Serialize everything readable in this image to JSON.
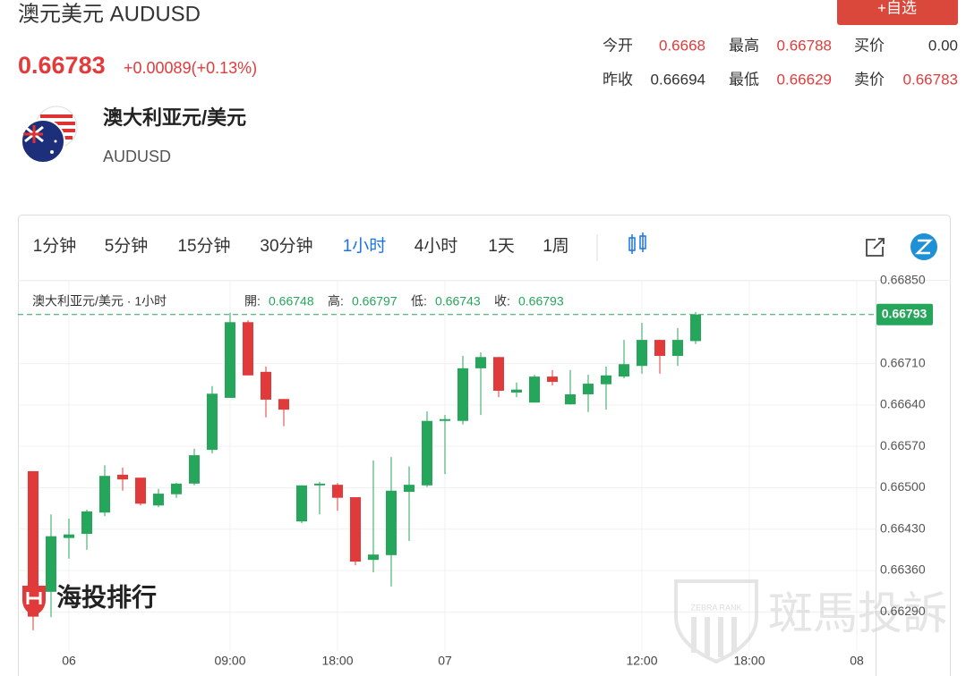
{
  "header": {
    "title": "澳元美元 AUDUSD",
    "price": "0.66783",
    "change": "+0.00089(+0.13%)",
    "button": "+自选"
  },
  "stats": [
    [
      {
        "label": "今开",
        "value": "0.6668",
        "color": "#e23b3b"
      },
      {
        "label": "最高",
        "value": "0.66788",
        "color": "#e23b3b"
      },
      {
        "label": "买价",
        "value": "0.00",
        "color": "#333333"
      }
    ],
    [
      {
        "label": "昨收",
        "value": "0.66694",
        "color": "#333333"
      },
      {
        "label": "最低",
        "value": "0.66629",
        "color": "#e23b3b"
      },
      {
        "label": "卖价",
        "value": "0.66783",
        "color": "#e23b3b"
      }
    ]
  ],
  "instrument": {
    "name": "澳大利亚元/美元",
    "code": "AUDUSD"
  },
  "toolbar": {
    "intervals": [
      "1分钟",
      "5分钟",
      "15分钟",
      "30分钟",
      "1小时",
      "4小时",
      "1天",
      "1周"
    ],
    "active": 4
  },
  "chart_data": {
    "type": "candlestick",
    "legend": {
      "symbol": "澳大利亚元/美元 · 1小时",
      "fields": [
        "開:",
        "高:",
        "低:",
        "收:"
      ]
    },
    "categories": [
      null,
      null,
      "06",
      null,
      null,
      null,
      null,
      null,
      null,
      null,
      null,
      "09:00",
      null,
      null,
      null,
      null,
      null,
      "18:00",
      null,
      null,
      null,
      null,
      null,
      "07",
      null,
      null,
      null,
      null,
      null,
      null,
      null,
      null,
      null,
      null,
      "12:00",
      null,
      null,
      null,
      null,
      null,
      "18:00",
      null,
      null,
      null,
      null,
      null,
      "08"
    ],
    "open": [
      0.66528,
      0.66324,
      0.66415,
      0.66422,
      0.66458,
      0.66522,
      0.66517,
      0.6647,
      0.66489,
      0.66507,
      0.66564,
      0.66652,
      0.6678,
      0.66696,
      0.6665,
      0.66443,
      0.66504,
      0.66505,
      0.66484,
      0.66378,
      0.66386,
      0.66493,
      0.66504,
      0.66613,
      0.66613,
      0.66702,
      0.66721,
      0.66661,
      0.66644,
      0.66688,
      0.66641,
      0.66658,
      0.66675,
      0.66688,
      0.66706,
      0.6675,
      0.66723,
      0.66748,
      null,
      null,
      null,
      null,
      null,
      null,
      null,
      null,
      null
    ],
    "high": [
      0.66528,
      0.66455,
      0.66448,
      0.66463,
      0.66538,
      0.66534,
      0.66517,
      0.66498,
      0.66508,
      0.66566,
      0.66672,
      0.66796,
      0.66783,
      0.66705,
      0.6665,
      0.66504,
      0.6651,
      0.66508,
      0.66484,
      0.66546,
      0.66552,
      0.66536,
      0.66629,
      0.66623,
      0.66723,
      0.66729,
      0.66721,
      0.66678,
      0.66691,
      0.66699,
      0.66699,
      0.66691,
      0.66705,
      0.6675,
      0.66779,
      0.6675,
      0.6677,
      0.66797,
      null,
      null,
      null,
      null,
      null,
      null,
      null,
      null,
      null
    ],
    "low": [
      0.66259,
      0.66281,
      0.6638,
      0.66395,
      0.66452,
      0.66495,
      0.6647,
      0.66467,
      0.66483,
      0.66504,
      0.66558,
      0.66652,
      0.6669,
      0.66619,
      0.66604,
      0.6644,
      0.66455,
      0.66461,
      0.66369,
      0.66357,
      0.66333,
      0.6641,
      0.66501,
      0.66523,
      0.66607,
      0.66623,
      0.66653,
      0.66653,
      0.66644,
      0.66673,
      0.66641,
      0.66628,
      0.66632,
      0.66685,
      0.66693,
      0.66693,
      0.66706,
      0.66743,
      null,
      null,
      null,
      null,
      null,
      null,
      null,
      null,
      null
    ],
    "close": [
      0.66282,
      0.66418,
      0.66421,
      0.6646,
      0.6652,
      0.66514,
      0.66473,
      0.6649,
      0.66507,
      0.66555,
      0.66659,
      0.6678,
      0.6669,
      0.66649,
      0.66632,
      0.66504,
      0.66507,
      0.66483,
      0.66375,
      0.66387,
      0.66495,
      0.66505,
      0.66613,
      0.66616,
      0.66702,
      0.66721,
      0.66664,
      0.66666,
      0.66688,
      0.66679,
      0.66658,
      0.66676,
      0.6669,
      0.66709,
      0.6675,
      0.66723,
      0.6675,
      0.66793,
      null,
      null,
      null,
      null,
      null,
      null,
      null,
      null,
      null
    ],
    "up_color": "#26a65b",
    "down_color": "#e03a3a",
    "ylim": [
      0.6623,
      0.6685
    ],
    "yticks": [
      {
        "value": 0.6629,
        "label": "0.66290"
      },
      {
        "value": 0.6636,
        "label": "0.66360"
      },
      {
        "value": 0.6643,
        "label": "0.66430"
      },
      {
        "value": 0.665,
        "label": "0.66500"
      },
      {
        "value": 0.6657,
        "label": "0.66570"
      },
      {
        "value": 0.6664,
        "label": "0.66640"
      },
      {
        "value": 0.6671,
        "label": "0.66710"
      },
      {
        "value": 0.6685,
        "label": "0.66850"
      }
    ],
    "price_line": 0.66793,
    "grid": true
  },
  "watermarks": {
    "left": "海投排行",
    "right": "斑馬投訴",
    "badge": "ZEBRA RANK"
  }
}
